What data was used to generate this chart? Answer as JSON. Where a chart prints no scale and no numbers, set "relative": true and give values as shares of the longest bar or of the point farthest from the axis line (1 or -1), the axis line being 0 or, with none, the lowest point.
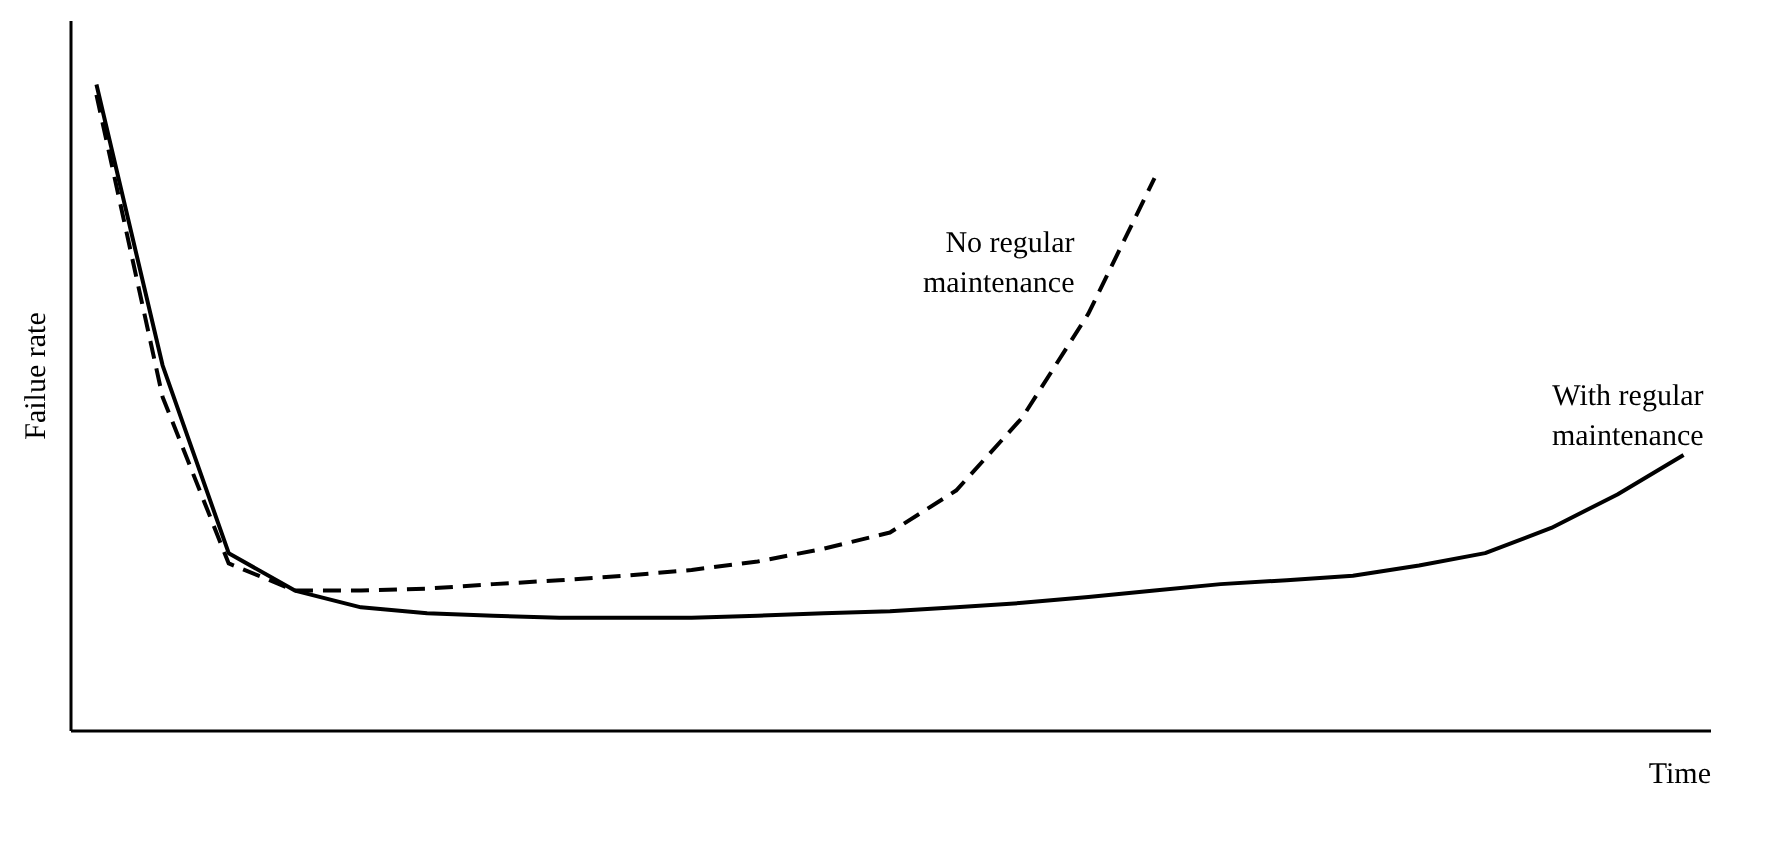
{
  "chart_data": {
    "type": "line",
    "relative": true,
    "xlabel": "Time",
    "ylabel": "Failue rate",
    "grid": false,
    "marker": "none",
    "categories": [
      null,
      null,
      null,
      null,
      null,
      null,
      null,
      null,
      null,
      null,
      null,
      null,
      null,
      null,
      null,
      null,
      null,
      null,
      null,
      null,
      null,
      null,
      null,
      null,
      null
    ],
    "series": [
      {
        "name": "No regular maintenance",
        "color": "#000000",
        "line_style": "dashed",
        "values": [
          0.984,
          0.516,
          0.258,
          0.216,
          0.216,
          0.219,
          0.226,
          0.232,
          0.239,
          0.248,
          0.261,
          0.281,
          0.306,
          0.371,
          0.484,
          0.645,
          0.855,
          null,
          null,
          null,
          null,
          null,
          null,
          null,
          null
        ]
      },
      {
        "name": "With regular maintenance",
        "color": "#000000",
        "line_style": "solid",
        "values": [
          1,
          0.565,
          0.274,
          0.216,
          0.19,
          0.181,
          0.177,
          0.174,
          0.174,
          0.174,
          0.177,
          0.181,
          0.184,
          0.19,
          0.197,
          0.206,
          0.216,
          0.226,
          0.232,
          0.239,
          0.255,
          0.274,
          0.313,
          0.365,
          0.426
        ]
      }
    ]
  }
}
